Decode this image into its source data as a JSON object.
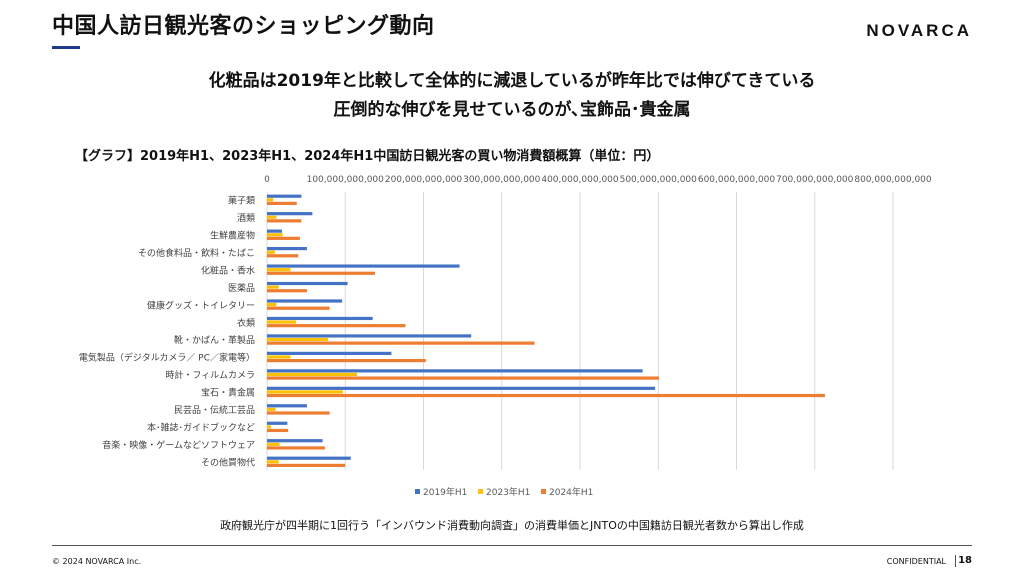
{
  "header": {
    "title": "中国人訪日観光客のショッピング動向",
    "logo": "NOVARCA"
  },
  "headline": {
    "line1": "化粧品は2019年と比較して全体的に減退しているが昨年比では伸びてきている",
    "line2": "圧倒的な伸びを見せているのが､宝飾品･貴金属"
  },
  "graph_title": "【グラフ】2019年H1、2023年H1、2024年H1中国訪日観光客の買い物消費額概算（単位：円）",
  "note": "政府観光庁が四半期に1回行う「インバウンド消費動向調査」の消費単価とJNTOの中国籍訪日観光者数から算出し作成",
  "footer": {
    "copyright": "© 2024 NOVARCA Inc.",
    "confidential": "CONFIDENTIAL",
    "page": "18"
  },
  "chart_data": {
    "type": "bar",
    "orientation": "horizontal",
    "title": "",
    "xlabel": "",
    "ylabel": "",
    "xlim": [
      0,
      800000000000
    ],
    "ticks": [
      0,
      100000000000,
      200000000000,
      300000000000,
      400000000000,
      500000000000,
      600000000000,
      700000000000,
      800000000000
    ],
    "tick_labels": [
      "0",
      "100,000,000,000",
      "200,000,000,000",
      "300,000,000,000",
      "400,000,000,000",
      "500,000,000,000",
      "600,000,000,000",
      "700,000,000,000",
      "800,000,000,000"
    ],
    "grid": true,
    "legend_position": "bottom",
    "categories": [
      "菓子類",
      "酒類",
      "生鮮農産物",
      "その他食料品・飲料・たばこ",
      "化粧品・香水",
      "医薬品",
      "健康グッズ・トイレタリー",
      "衣類",
      "靴・かばん・革製品",
      "電気製品（デジタルカメラ／ PC／家電等）",
      "時計・フィルムカメラ",
      "宝石・貴金属",
      "民芸品・伝統工芸品",
      "本･雑誌･ガイドブックなど",
      "音楽・映像・ゲームなどソフトウェア",
      "その他買物代"
    ],
    "series": [
      {
        "name": "2019年H1",
        "color": "#4472c4",
        "values": [
          44000000000,
          58000000000,
          19000000000,
          51000000000,
          246000000000,
          103000000000,
          96000000000,
          135000000000,
          261000000000,
          159000000000,
          480000000000,
          496000000000,
          51000000000,
          26000000000,
          71000000000,
          107000000000
        ]
      },
      {
        "name": "2023年H1",
        "color": "#ffc000",
        "values": [
          8000000000,
          12000000000,
          20000000000,
          10000000000,
          30000000000,
          15000000000,
          12000000000,
          37000000000,
          78000000000,
          30000000000,
          115000000000,
          97000000000,
          11000000000,
          5000000000,
          16000000000,
          15000000000
        ]
      },
      {
        "name": "2024年H1",
        "color": "#ed7d31",
        "values": [
          38000000000,
          44000000000,
          42000000000,
          40000000000,
          138000000000,
          51000000000,
          80000000000,
          177000000000,
          342000000000,
          203000000000,
          501000000000,
          713000000000,
          80000000000,
          27000000000,
          74000000000,
          100000000000
        ]
      }
    ]
  }
}
